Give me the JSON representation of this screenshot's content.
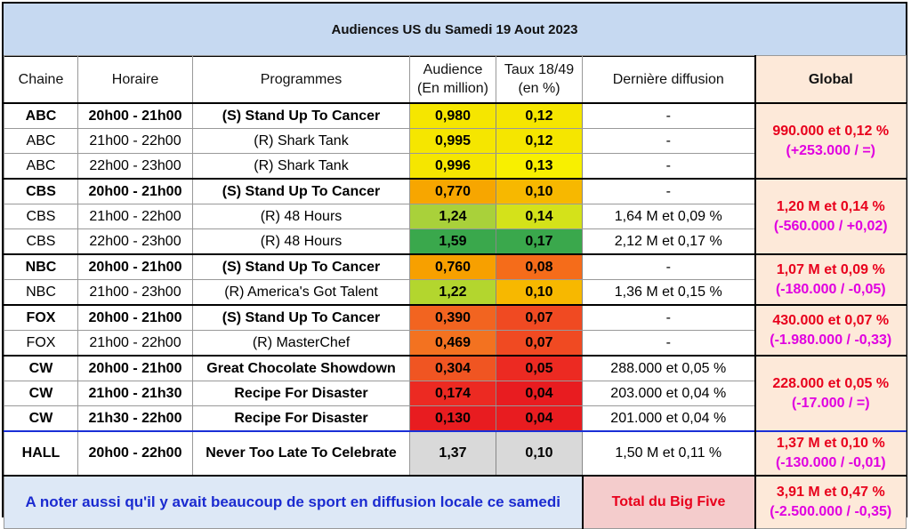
{
  "title": "Audiences US du Samedi 19 Aout 2023",
  "headers": {
    "chaine": "Chaine",
    "horaire": "Horaire",
    "programmes": "Programmes",
    "audience_1": "Audience",
    "audience_2": "(En million)",
    "taux_1": "Taux 18/49",
    "taux_2": "(en %)",
    "derniere": "Dernière diffusion",
    "global": "Global"
  },
  "rows": [
    {
      "chaine": "ABC",
      "horaire": "20h00 - 21h00",
      "programme": "(S) Stand Up To Cancer",
      "audience": "0,980",
      "taux": "0,12",
      "derniere": "-",
      "bold": true,
      "aud_color": "#f5e600",
      "taux_color": "#f5e600"
    },
    {
      "chaine": "ABC",
      "horaire": "21h00 - 22h00",
      "programme": "(R) Shark Tank",
      "audience": "0,995",
      "taux": "0,12",
      "derniere": "-",
      "bold": false,
      "aud_color": "#f5e600",
      "taux_color": "#f5e600"
    },
    {
      "chaine": "ABC",
      "horaire": "22h00 - 23h00",
      "programme": "(R) Shark Tank",
      "audience": "0,996",
      "taux": "0,13",
      "derniere": "-",
      "bold": false,
      "aud_color": "#f5e600",
      "taux_color": "#f8f000"
    },
    {
      "chaine": "CBS",
      "horaire": "20h00 - 21h00",
      "programme": "(S) Stand Up To Cancer",
      "audience": "0,770",
      "taux": "0,10",
      "derniere": "-",
      "bold": true,
      "aud_color": "#f7a600",
      "taux_color": "#f7b800"
    },
    {
      "chaine": "CBS",
      "horaire": "21h00 - 22h00",
      "programme": "(R) 48 Hours",
      "audience": "1,24",
      "taux": "0,14",
      "derniere": "1,64 M et 0,09 %",
      "bold": false,
      "aud_color": "#a9d13a",
      "taux_color": "#d4e21a"
    },
    {
      "chaine": "CBS",
      "horaire": "22h00 - 23h00",
      "programme": "(R) 48 Hours",
      "audience": "1,59",
      "taux": "0,17",
      "derniere": "2,12 M et 0,17 %",
      "bold": false,
      "aud_color": "#3aa84c",
      "taux_color": "#3aa84c"
    },
    {
      "chaine": "NBC",
      "horaire": "20h00 - 21h00",
      "programme": "(S) Stand Up To Cancer",
      "audience": "0,760",
      "taux": "0,08",
      "derniere": "-",
      "bold": true,
      "aud_color": "#f7a000",
      "taux_color": "#f56c1a"
    },
    {
      "chaine": "NBC",
      "horaire": "21h00 - 23h00",
      "programme": "(R) America's Got Talent",
      "audience": "1,22",
      "taux": "0,10",
      "derniere": "1,36 M et 0,15 %",
      "bold": false,
      "aud_color": "#b3d62e",
      "taux_color": "#f7b800"
    },
    {
      "chaine": "FOX",
      "horaire": "20h00 - 21h00",
      "programme": "(S) Stand Up To Cancer",
      "audience": "0,390",
      "taux": "0,07",
      "derniere": "-",
      "bold": true,
      "aud_color": "#f26420",
      "taux_color": "#f04a22"
    },
    {
      "chaine": "FOX",
      "horaire": "21h00 - 22h00",
      "programme": "(R) MasterChef",
      "audience": "0,469",
      "taux": "0,07",
      "derniere": "-",
      "bold": false,
      "aud_color": "#f37220",
      "taux_color": "#f04a22"
    },
    {
      "chaine": "CW",
      "horaire": "20h00 - 21h00",
      "programme": "Great Chocolate Showdown",
      "audience": "0,304",
      "taux": "0,05",
      "derniere": "288.000 et 0,05 %",
      "bold": true,
      "aud_color": "#f05522",
      "taux_color": "#ec2a22"
    },
    {
      "chaine": "CW",
      "horaire": "21h00 - 21h30",
      "programme": "Recipe For Disaster",
      "audience": "0,174",
      "taux": "0,04",
      "derniere": "203.000 et 0,04 %",
      "bold": true,
      "aud_color": "#ec2a22",
      "taux_color": "#e81c20"
    },
    {
      "chaine": "CW",
      "horaire": "21h30 - 22h00",
      "programme": "Recipe For Disaster",
      "audience": "0,130",
      "taux": "0,04",
      "derniere": "201.000 et 0,04 %",
      "bold": true,
      "aud_color": "#e81c20",
      "taux_color": "#e81c20"
    }
  ],
  "globals": {
    "abc_1": "990.000 et 0,12 %",
    "abc_2": "(+253.000 / =)",
    "cbs_1": "1,20 M et 0,14 %",
    "cbs_2": "(-560.000 / +0,02)",
    "nbc_1": "1,07 M et 0,09 %",
    "nbc_2": "(-180.000 / -0,05)",
    "fox_1": "430.000 et 0,07 %",
    "fox_2": "(-1.980.000 / -0,33)",
    "cw_1": "228.000 et 0,05 %",
    "cw_2": "(-17.000 / =)"
  },
  "hall": {
    "chaine": "HALL",
    "horaire": "20h00 - 22h00",
    "programme": "Never Too Late To Celebrate",
    "audience": "1,37",
    "taux": "0,10",
    "derniere": "1,50 M et 0,11 %",
    "global_1": "1,37 M et 0,10 %",
    "global_2": "(-130.000 / -0,01)",
    "cell_color": "#d9d9d9"
  },
  "footer": {
    "note": "A noter aussi qu'il y avait beaucoup de sport en diffusion locale ce samedi",
    "total_label": "Total du Big Five",
    "total_1": "3,91 M et 0,47 %",
    "total_2": "(-2.500.000 / -0,35)"
  }
}
